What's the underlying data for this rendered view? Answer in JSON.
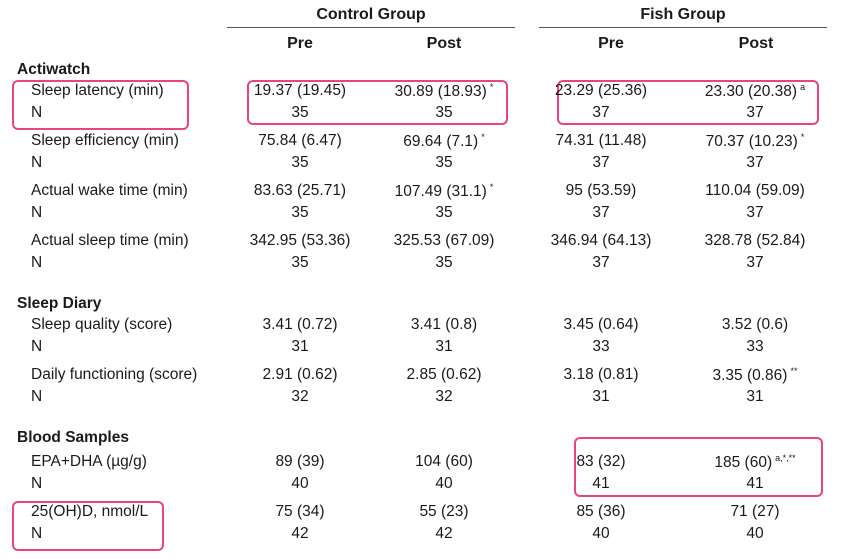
{
  "groups": [
    {
      "name": "Control Group",
      "pre": "Pre",
      "post": "Post"
    },
    {
      "name": "Fish Group",
      "pre": "Pre",
      "post": "Post"
    }
  ],
  "sections": [
    {
      "title": "Actiwatch",
      "rows": [
        {
          "label": "Sleep latency (min)",
          "c_pre": "19.37 (19.45)",
          "c_post": "30.89 (18.93)",
          "c_post_sup": "*",
          "f_pre": "23.29 (25.36)",
          "f_post": "23.30 (20.38)",
          "f_post_sup": "a"
        },
        {
          "label": "N",
          "c_pre": "35",
          "c_post": "35",
          "f_pre": "37",
          "f_post": "37"
        },
        {
          "label": "Sleep efficiency (min)",
          "c_pre": "75.84 (6.47)",
          "c_post": "69.64 (7.1)",
          "c_post_sup": "*",
          "f_pre": "74.31 (11.48)",
          "f_post": "70.37 (10.23)",
          "f_post_sup": "*"
        },
        {
          "label": "N",
          "c_pre": "35",
          "c_post": "35",
          "f_pre": "37",
          "f_post": "37"
        },
        {
          "label": "Actual wake time (min)",
          "c_pre": "83.63 (25.71)",
          "c_post": "107.49 (31.1)",
          "c_post_sup": "*",
          "f_pre": "95 (53.59)",
          "f_post": "110.04 (59.09)"
        },
        {
          "label": "N",
          "c_pre": "35",
          "c_post": "35",
          "f_pre": "37",
          "f_post": "37"
        },
        {
          "label": "Actual sleep time (min)",
          "c_pre": "342.95 (53.36)",
          "c_post": "325.53 (67.09)",
          "f_pre": "346.94 (64.13)",
          "f_post": "328.78 (52.84)"
        },
        {
          "label": "N",
          "c_pre": "35",
          "c_post": "35",
          "f_pre": "37",
          "f_post": "37"
        }
      ]
    },
    {
      "title": "Sleep Diary",
      "rows": [
        {
          "label": "Sleep quality (score)",
          "c_pre": "3.41 (0.72)",
          "c_post": "3.41 (0.8)",
          "f_pre": "3.45 (0.64)",
          "f_post": "3.52 (0.6)"
        },
        {
          "label": "N",
          "c_pre": "31",
          "c_post": "31",
          "f_pre": "33",
          "f_post": "33"
        },
        {
          "label": "Daily functioning (score)",
          "c_pre": "2.91 (0.62)",
          "c_post": "2.85 (0.62)",
          "f_pre": "3.18 (0.81)",
          "f_post": "3.35 (0.86)",
          "f_post_sup": "**"
        },
        {
          "label": "N",
          "c_pre": "32",
          "c_post": "32",
          "f_pre": "31",
          "f_post": "31"
        }
      ]
    },
    {
      "title": "Blood Samples",
      "rows": [
        {
          "label": "EPA+DHA (µg/g)",
          "c_pre": "89 (39)",
          "c_post": "104 (60)",
          "f_pre": "83 (32)",
          "f_post": "185 (60)",
          "f_post_sup": "a,*,**"
        },
        {
          "label": "N",
          "c_pre": "40",
          "c_post": "40",
          "f_pre": "41",
          "f_post": "41"
        },
        {
          "label": "25(OH)D, nmol/L",
          "c_pre": "75 (34)",
          "c_post": "55 (23)",
          "f_pre": "85 (36)",
          "f_post": "71 (27)"
        },
        {
          "label": "N",
          "c_pre": "42",
          "c_post": "42",
          "f_pre": "40",
          "f_post": "40"
        }
      ]
    }
  ]
}
